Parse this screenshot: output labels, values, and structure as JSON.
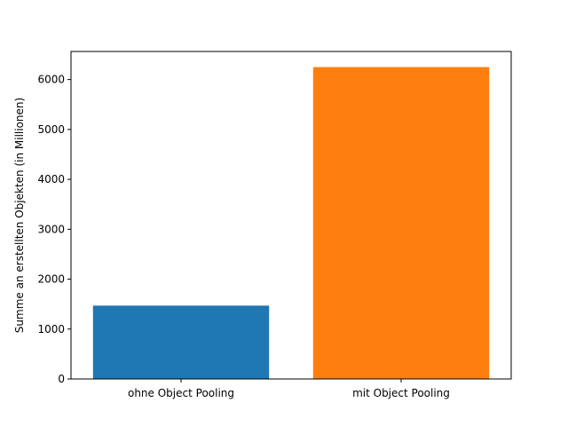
{
  "chart_data": {
    "type": "bar",
    "categories": [
      "ohne Object Pooling",
      "mit Object Pooling"
    ],
    "values": [
      1470,
      6250
    ],
    "colors": [
      "#1f77b4",
      "#ff7f0e"
    ],
    "title": "",
    "xlabel": "",
    "ylabel": "Summe an erstellten Objekten (in Millionen)",
    "ylim": [
      0,
      6562.5
    ],
    "yticks": [
      0,
      1000,
      2000,
      3000,
      4000,
      5000,
      6000
    ],
    "grid": false
  }
}
